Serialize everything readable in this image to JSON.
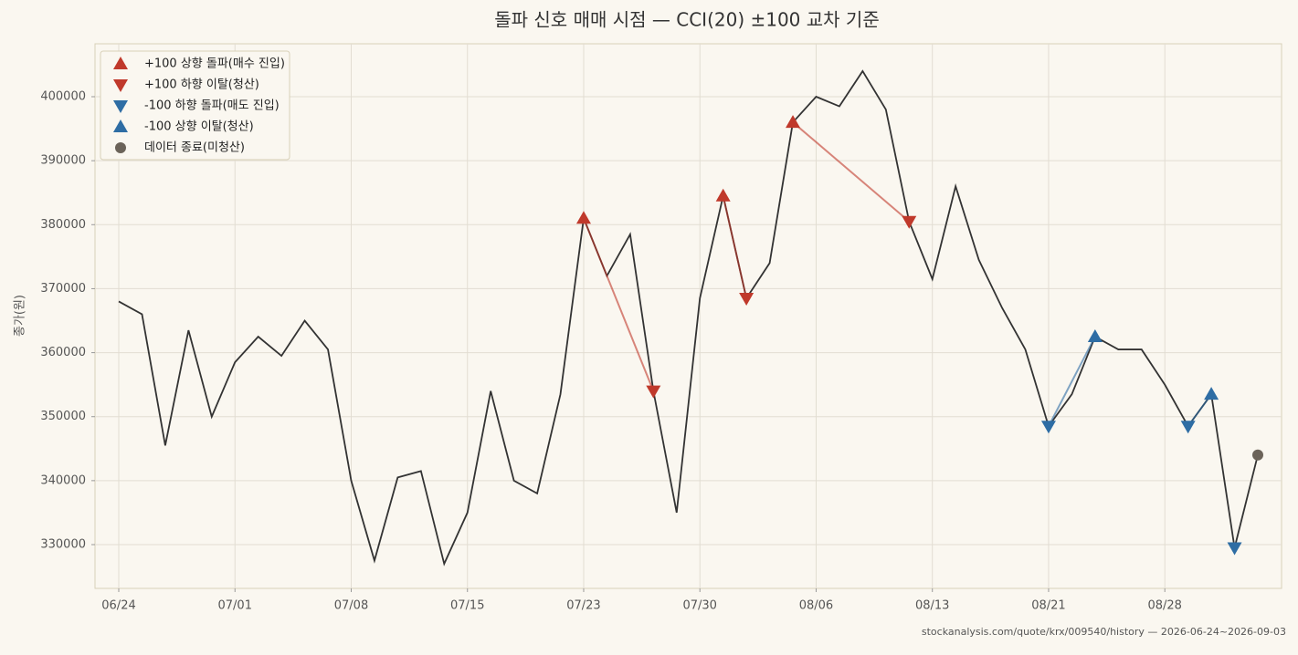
{
  "chart_data": {
    "type": "line",
    "title": "돌파 신호 매매 시점 — CCI(20) ±100 교차 기준",
    "ylabel": "종가(원)",
    "footer": "stockanalysis.com/quote/krx/009540/history — 2026-06-24~2026-09-03",
    "categories": [
      "06/24",
      null,
      null,
      null,
      null,
      "07/01",
      null,
      null,
      null,
      null,
      "07/08",
      null,
      null,
      null,
      null,
      "07/15",
      null,
      null,
      null,
      null,
      "07/23",
      null,
      null,
      null,
      null,
      "07/30",
      null,
      null,
      null,
      null,
      "08/06",
      null,
      null,
      null,
      null,
      "08/13",
      null,
      null,
      null,
      null,
      "08/21",
      null,
      null,
      null,
      null,
      "08/28",
      null,
      null,
      null,
      null
    ],
    "values": [
      368000,
      366000,
      345500,
      363500,
      350000,
      358500,
      362500,
      359500,
      365000,
      360500,
      340000,
      327500,
      340500,
      341500,
      327000,
      335000,
      354000,
      340000,
      338000,
      353500,
      381000,
      372000,
      378500,
      354000,
      335000,
      368500,
      384500,
      368500,
      374000,
      396000,
      400000,
      398500,
      404000,
      398000,
      380500,
      371500,
      386000,
      374500,
      367000,
      360500,
      348500,
      353500,
      362500,
      360500,
      360500,
      355000,
      348500,
      353500,
      329500,
      344000
    ],
    "color": "#333333",
    "series": [
      {
        "name": "+100 상향 돌파(매수 진입)",
        "color": "#c0392b",
        "marker": "up",
        "values": [
          null,
          null,
          null,
          null,
          null,
          null,
          null,
          null,
          null,
          null,
          null,
          null,
          null,
          null,
          null,
          null,
          null,
          null,
          null,
          null,
          381000,
          null,
          null,
          null,
          null,
          null,
          384500,
          null,
          null,
          396000,
          null,
          null,
          null,
          null,
          null,
          null,
          null,
          null,
          null,
          null,
          null,
          null,
          null,
          null,
          null,
          null,
          null,
          null,
          null,
          null
        ]
      },
      {
        "name": "+100 하향 이탈(청산)",
        "color": "#c0392b",
        "marker": "down",
        "values": [
          null,
          null,
          null,
          null,
          null,
          null,
          null,
          null,
          null,
          null,
          null,
          null,
          null,
          null,
          null,
          null,
          null,
          null,
          null,
          null,
          null,
          null,
          null,
          354000,
          null,
          null,
          null,
          368500,
          null,
          null,
          null,
          null,
          null,
          null,
          380500,
          null,
          null,
          null,
          null,
          null,
          null,
          null,
          null,
          null,
          null,
          null,
          null,
          null,
          null,
          null
        ]
      },
      {
        "name": "-100 하향 돌파(매도 진입)",
        "color": "#2e6da4",
        "marker": "down",
        "values": [
          null,
          null,
          null,
          null,
          null,
          null,
          null,
          null,
          null,
          null,
          null,
          null,
          null,
          null,
          null,
          null,
          null,
          null,
          null,
          null,
          null,
          null,
          null,
          null,
          null,
          null,
          null,
          null,
          null,
          null,
          null,
          null,
          null,
          null,
          null,
          null,
          null,
          null,
          null,
          null,
          348500,
          null,
          null,
          null,
          null,
          null,
          348500,
          null,
          329500,
          null
        ]
      },
      {
        "name": "-100 상향 이탈(청산)",
        "color": "#2e6da4",
        "marker": "up",
        "values": [
          null,
          null,
          null,
          null,
          null,
          null,
          null,
          null,
          null,
          null,
          null,
          null,
          null,
          null,
          null,
          null,
          null,
          null,
          null,
          null,
          null,
          null,
          null,
          null,
          null,
          null,
          null,
          null,
          null,
          null,
          null,
          null,
          null,
          null,
          null,
          null,
          null,
          null,
          null,
          null,
          null,
          null,
          362500,
          null,
          null,
          null,
          null,
          353500,
          null,
          null
        ]
      },
      {
        "name": "데이터 종료(미청산)",
        "color": "#6b6359",
        "marker": "circle",
        "values": [
          null,
          null,
          null,
          null,
          null,
          null,
          null,
          null,
          null,
          null,
          null,
          null,
          null,
          null,
          null,
          null,
          null,
          null,
          null,
          null,
          null,
          null,
          null,
          null,
          null,
          null,
          null,
          null,
          null,
          null,
          null,
          null,
          null,
          null,
          null,
          null,
          null,
          null,
          null,
          null,
          null,
          null,
          null,
          null,
          null,
          null,
          null,
          null,
          null,
          344000
        ]
      }
    ],
    "ylim": [
      323157,
      408270
    ],
    "yticks": [
      330000,
      340000,
      350000,
      360000,
      370000,
      380000,
      390000,
      400000
    ],
    "grid": true,
    "legend": "upper left"
  }
}
